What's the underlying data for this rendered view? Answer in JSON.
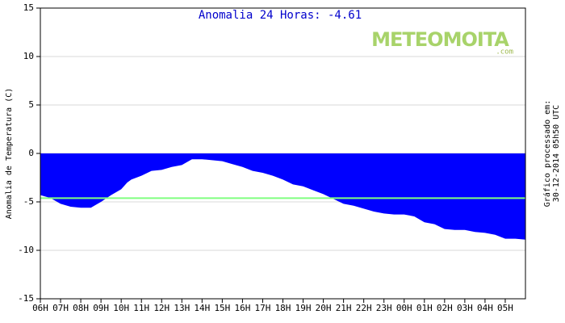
{
  "chart_data": {
    "type": "area",
    "title": "Anomalia 24 Horas: -4.61",
    "logo": {
      "main": "METEOMOITA",
      "suffix": ".com"
    },
    "y_label": "Anomalia de Temperatura (C)",
    "side_note": [
      "Gráfico processado em:",
      "30-12-2014 05h50 UTC"
    ],
    "x": [
      0,
      0.5,
      1,
      1.5,
      2,
      2.5,
      3,
      3.5,
      4,
      4.3,
      4.5,
      5,
      5.5,
      6,
      6.5,
      7,
      7.5,
      8,
      8.5,
      9,
      9.5,
      10,
      10.5,
      11,
      11.5,
      12,
      12.5,
      13,
      13.5,
      14,
      14.5,
      15,
      15.5,
      16,
      16.5,
      17,
      17.5,
      18,
      18.5,
      19,
      19.5,
      20,
      20.5,
      21,
      21.5,
      22,
      22.5,
      23,
      23.5,
      24
    ],
    "series": [
      {
        "name": "Anomalia",
        "color": "#0000ff",
        "values": [
          -4.3,
          -4.6,
          -5.2,
          -5.5,
          -5.6,
          -5.6,
          -5.0,
          -4.3,
          -3.7,
          -3.0,
          -2.7,
          -2.3,
          -1.8,
          -1.7,
          -1.4,
          -1.2,
          -0.6,
          -0.6,
          -0.7,
          -0.8,
          -1.1,
          -1.4,
          -1.8,
          -2.0,
          -2.3,
          -2.7,
          -3.2,
          -3.4,
          -3.8,
          -4.2,
          -4.7,
          -5.2,
          -5.4,
          -5.7,
          -6.0,
          -6.2,
          -6.3,
          -6.3,
          -6.5,
          -7.1,
          -7.3,
          -7.8,
          -7.9,
          -7.9,
          -8.1,
          -8.2,
          -8.4,
          -8.8,
          -8.8,
          -8.9
        ]
      }
    ],
    "reference_line": {
      "value": -4.61,
      "color": "#80ff80"
    },
    "xlim": [
      0,
      24
    ],
    "xticks": [
      {
        "value": 0,
        "label": "06H"
      },
      {
        "value": 1,
        "label": "07H"
      },
      {
        "value": 2,
        "label": "08H"
      },
      {
        "value": 3,
        "label": "09H"
      },
      {
        "value": 4,
        "label": "10H"
      },
      {
        "value": 5,
        "label": "11H"
      },
      {
        "value": 6,
        "label": "12H"
      },
      {
        "value": 7,
        "label": "13H"
      },
      {
        "value": 8,
        "label": "14H"
      },
      {
        "value": 9,
        "label": "15H"
      },
      {
        "value": 10,
        "label": "16H"
      },
      {
        "value": 11,
        "label": "17H"
      },
      {
        "value": 12,
        "label": "18H"
      },
      {
        "value": 13,
        "label": "19H"
      },
      {
        "value": 14,
        "label": "20H"
      },
      {
        "value": 15,
        "label": "21H"
      },
      {
        "value": 16,
        "label": "22H"
      },
      {
        "value": 17,
        "label": "23H"
      },
      {
        "value": 18,
        "label": "00H"
      },
      {
        "value": 19,
        "label": "01H"
      },
      {
        "value": 20,
        "label": "02H"
      },
      {
        "value": 21,
        "label": "03H"
      },
      {
        "value": 22,
        "label": "04H"
      },
      {
        "value": 23,
        "label": "05H"
      }
    ],
    "ylim": [
      -15,
      15
    ],
    "yticks": [
      -15,
      -10,
      -5,
      0,
      5,
      10,
      15
    ],
    "grid": true
  }
}
